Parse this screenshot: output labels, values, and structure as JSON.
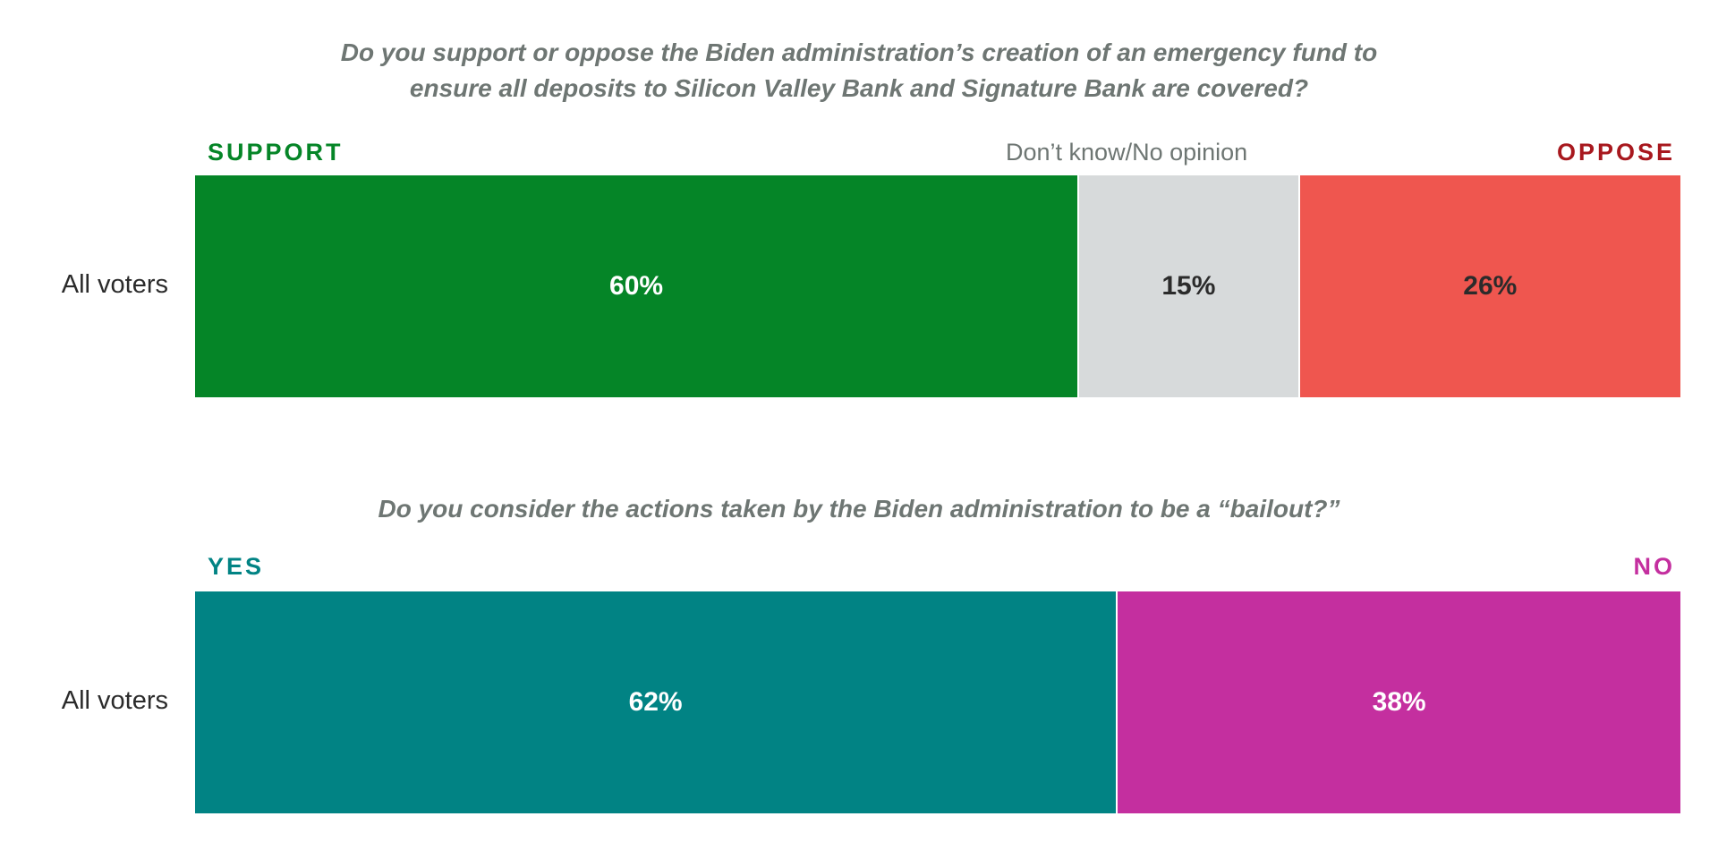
{
  "chart_data": [
    {
      "type": "bar",
      "orientation": "horizontal-stacked",
      "title_lines": [
        "Do you support or oppose the Biden administration’s creation of an emergency fund to",
        "ensure all deposits to Silicon Valley Bank and Signature Bank are covered?"
      ],
      "categories": [
        "All voters"
      ],
      "series": [
        {
          "name": "SUPPORT",
          "values": [
            60
          ],
          "value_label": "60%",
          "color": "#058527",
          "text_color": "#ffffff"
        },
        {
          "name": "Don’t know/No opinion",
          "values": [
            15
          ],
          "value_label": "15%",
          "color": "#d7dadb",
          "text_color": "#2b2b2b"
        },
        {
          "name": "OPPOSE",
          "values": [
            26
          ],
          "value_label": "26%",
          "color": "#ef564f",
          "text_color": "#2b2b2b"
        }
      ],
      "series_label_colors": [
        "#058527",
        "#6e7673",
        "#a8181e"
      ],
      "legend": "top, above bar segments"
    },
    {
      "type": "bar",
      "orientation": "horizontal-stacked",
      "title_lines": [
        "Do you consider the actions taken by the Biden administration to be a “bailout?”"
      ],
      "categories": [
        "All voters"
      ],
      "series": [
        {
          "name": "YES",
          "values": [
            62
          ],
          "value_label": "62%",
          "color": "#018384",
          "text_color": "#ffffff"
        },
        {
          "name": "NO",
          "values": [
            38
          ],
          "value_label": "38%",
          "color": "#c42f9f",
          "text_color": "#ffffff"
        }
      ],
      "series_label_colors": [
        "#018384",
        "#c42f9f"
      ],
      "legend": "top, above bar segments"
    }
  ]
}
